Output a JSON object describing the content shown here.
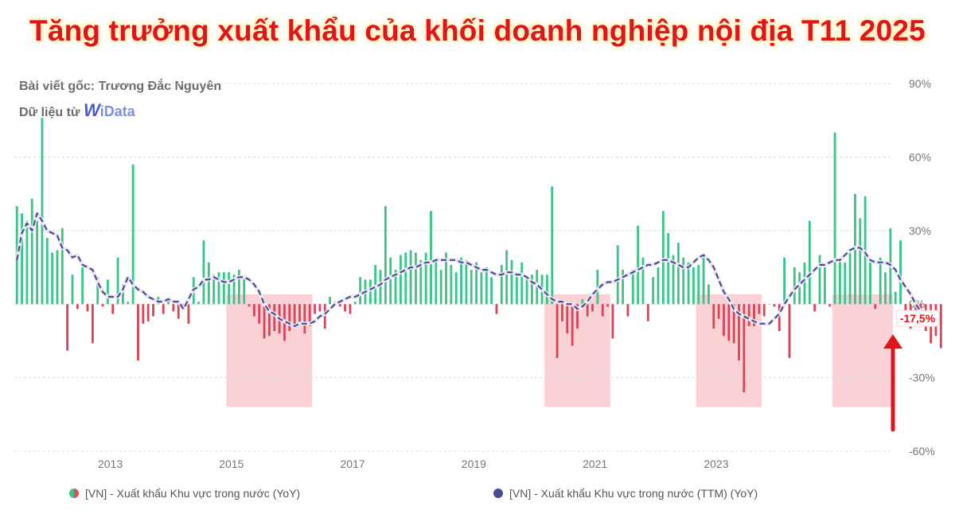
{
  "title": "Tăng trưởng xuất khẩu của khối doanh nghiệp nội địa T11 2025",
  "source_line": "Bài viết gốc: Trương Đắc Nguyên",
  "data_from_prefix": "Dữ liệu từ",
  "brand": {
    "mark": "W",
    "text": "iData"
  },
  "colors": {
    "positive": "#3cc48a",
    "negative": "#d8465c",
    "ttm": "#4b4c93",
    "shade": "#f9c9cc",
    "title": "#e0141c",
    "callout": "#e0141c"
  },
  "legend": {
    "yoy_label": "[VN] - Xuất khẩu Khu vực trong nước (YoY)",
    "ttm_label": "[VN] - Xuất khẩu Khu vực trong nước (TTM) (YoY)"
  },
  "chart_data": {
    "type": "bar",
    "y_axis_side": "right",
    "ylim": [
      -60,
      90
    ],
    "yticks": [
      "90%",
      "60%",
      "30%",
      "0%",
      "-30%",
      "-60%"
    ],
    "ytick_values": [
      90,
      60,
      30,
      0,
      -30,
      -60
    ],
    "xticks": [
      "2013",
      "2015",
      "2017",
      "2019",
      "2021",
      "2023"
    ],
    "x_start": "2011-06",
    "x_end": "2025-11",
    "shaded_periods": [
      {
        "from": "2014-12",
        "to": "2016-04"
      },
      {
        "from": "2020-03",
        "to": "2021-03"
      },
      {
        "from": "2022-09",
        "to": "2023-09"
      },
      {
        "from": "2024-12",
        "to": "2025-11"
      }
    ],
    "callout": {
      "label": "-17,5%",
      "x": "2025-11",
      "value": -17.5
    },
    "series": [
      {
        "name": "[VN] - Xuất khẩu Khu vực trong nước (YoY)",
        "kind": "bar",
        "values": [
          40,
          37,
          34,
          43,
          34,
          76,
          27,
          21,
          22,
          31,
          -19,
          12,
          -2,
          15,
          -3,
          -16,
          11,
          -1,
          10,
          -4,
          19,
          8,
          1,
          57,
          -23,
          -8,
          -7,
          -5,
          3,
          -4,
          1,
          -3,
          -6,
          -2,
          -8,
          11,
          1,
          26,
          17,
          12,
          13,
          13,
          13,
          12,
          14,
          11,
          -1,
          -5,
          -8,
          -14,
          -13,
          -11,
          -12,
          -15,
          -11,
          -9,
          -8,
          -12,
          -9,
          -4,
          -3,
          -10,
          3,
          1,
          -1,
          -3,
          -4,
          1,
          11,
          10,
          10,
          16,
          14,
          40,
          19,
          14,
          20,
          21,
          22,
          21,
          18,
          21,
          38,
          18,
          14,
          21,
          16,
          13,
          19,
          18,
          14,
          17,
          13,
          15,
          11,
          -4,
          16,
          22,
          18,
          11,
          17,
          11,
          12,
          14,
          12,
          12,
          48,
          -22,
          -7,
          -12,
          -17,
          -10,
          2,
          -5,
          -3,
          14,
          -5,
          -1,
          -14,
          24,
          14,
          -5,
          14,
          32,
          19,
          -7,
          11,
          15,
          38,
          29,
          20,
          25,
          19,
          17,
          15,
          16,
          20,
          8,
          -10,
          -6,
          -13,
          -15,
          -16,
          -23,
          -36,
          -9,
          -9,
          -4,
          -5,
          0,
          -1,
          -11,
          19,
          -22,
          15,
          13,
          17,
          34,
          -3,
          20,
          15,
          -1,
          70,
          18,
          17,
          21,
          45,
          35,
          44,
          17,
          -2,
          19,
          13,
          31,
          5,
          26,
          -8,
          -10,
          -9,
          -9,
          -11,
          -16,
          -13,
          -18
        ]
      },
      {
        "name": "[VN] - Xuất khẩu Khu vực trong nước (TTM) (YoY)",
        "kind": "line",
        "values": [
          18,
          29,
          33,
          30,
          37,
          34,
          30,
          29,
          28,
          23,
          22,
          19,
          20,
          16,
          15,
          14,
          9,
          5,
          3,
          3,
          3,
          6,
          11,
          8,
          6,
          5,
          3,
          2,
          1,
          1,
          2,
          1,
          1,
          -2,
          2,
          6,
          7,
          10,
          10,
          11,
          10,
          9,
          9,
          10,
          11,
          11,
          10,
          8,
          5,
          0,
          -3,
          -4,
          -6,
          -7,
          -8,
          -9,
          -8,
          -8,
          -8,
          -7,
          -5,
          -4,
          -2,
          0,
          1,
          2,
          3,
          3,
          4,
          5,
          6,
          7,
          8,
          10,
          11,
          12,
          13,
          14,
          15,
          15,
          16,
          17,
          17,
          18,
          18,
          18,
          18,
          18,
          17,
          17,
          16,
          15,
          14,
          14,
          13,
          12,
          12,
          13,
          13,
          12,
          12,
          11,
          9,
          8,
          6,
          4,
          2,
          1,
          1,
          0,
          0,
          -2,
          -1,
          1,
          4,
          6,
          8,
          9,
          9,
          10,
          11,
          12,
          13,
          14,
          15,
          16,
          16,
          17,
          18,
          18,
          17,
          16,
          15,
          15,
          17,
          19,
          20,
          18,
          15,
          10,
          5,
          2,
          -2,
          -4,
          -5,
          -6,
          -7,
          -8,
          -8,
          -8,
          -6,
          -4,
          0,
          3,
          6,
          8,
          10,
          12,
          14,
          16,
          16,
          17,
          18,
          18,
          20,
          22,
          23,
          23,
          21,
          18,
          17,
          17,
          17,
          16,
          14,
          10,
          7,
          4,
          0,
          -3
        ]
      }
    ]
  }
}
